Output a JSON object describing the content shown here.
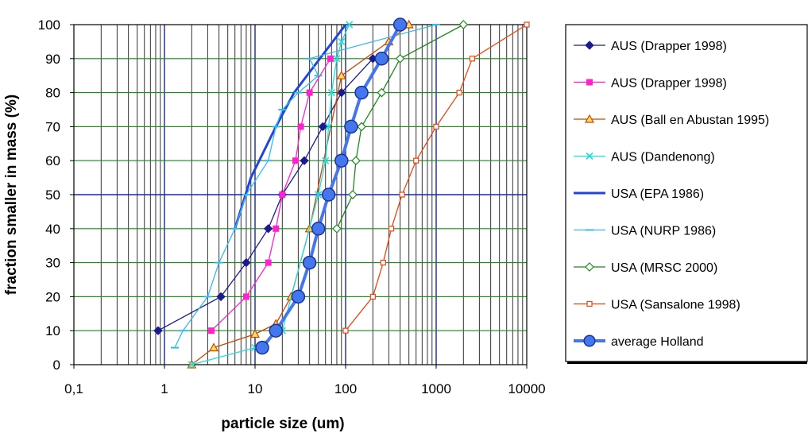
{
  "chart_data": {
    "type": "line",
    "xlabel": "particle size (um)",
    "ylabel": "fraction smaller in mass (%)",
    "xscale": "log",
    "xlim": [
      0.1,
      10000
    ],
    "ylim": [
      0,
      100
    ],
    "grid": true,
    "legend_position": "right",
    "x_ticks": [
      "0,1",
      "1",
      "10",
      "100",
      "1000",
      "10000"
    ],
    "y_ticks": [
      "0",
      "10",
      "20",
      "30",
      "40",
      "50",
      "60",
      "70",
      "80",
      "90",
      "100"
    ],
    "series": [
      {
        "name": "AUS (Drapper 1998)",
        "color": "#1b1b8f",
        "marker": "diamond",
        "width": 1.3,
        "x": [
          0.85,
          4.2,
          8,
          14,
          20,
          35,
          56,
          90,
          200
        ],
        "y": [
          10,
          20,
          30,
          40,
          50,
          60,
          70,
          80,
          90
        ]
      },
      {
        "name": "AUS (Drapper 1998)",
        "color": "#ff22cc",
        "marker": "square",
        "width": 1.3,
        "x": [
          3.3,
          8,
          14,
          17,
          20,
          28,
          32,
          40,
          68
        ],
        "y": [
          10,
          20,
          30,
          40,
          50,
          60,
          70,
          80,
          90
        ]
      },
      {
        "name": "AUS (Ball en Abustan 1995)",
        "color": "#cc4400",
        "marker": "triangle",
        "width": 1.3,
        "x": [
          2,
          3.5,
          10,
          17,
          25,
          40,
          90,
          300,
          500
        ],
        "y": [
          0,
          5,
          9,
          12,
          20,
          40,
          85,
          95,
          100
        ]
      },
      {
        "name": "AUS (Dandenong)",
        "color": "#22dddd",
        "marker": "x",
        "width": 1.3,
        "x": [
          2,
          10,
          20,
          50,
          60,
          65,
          70,
          80,
          90,
          110
        ],
        "y": [
          0,
          5,
          10,
          50,
          60,
          70,
          80,
          90,
          95,
          100
        ]
      },
      {
        "name": "USA (EPA 1986)",
        "color": "#2244dd",
        "marker": "none",
        "width": 3,
        "x": [
          6,
          9,
          17,
          27,
          100
        ],
        "y": [
          40,
          55,
          70,
          80,
          100
        ]
      },
      {
        "name": "USA (NURP 1986)",
        "color": "#33bbee",
        "marker": "dash",
        "width": 1.3,
        "x": [
          1.3,
          1.6,
          3,
          4,
          6,
          8,
          14,
          17,
          20,
          30,
          50,
          40,
          1000
        ],
        "y": [
          5,
          10,
          20,
          30,
          40,
          50,
          60,
          70,
          75,
          80,
          85,
          90,
          100
        ]
      },
      {
        "name": "USA (MRSC 2000)",
        "color": "#1a8a1a",
        "marker": "diamond-open",
        "width": 1.3,
        "x": [
          80,
          120,
          130,
          150,
          250,
          400,
          2000
        ],
        "y": [
          40,
          50,
          60,
          70,
          80,
          90,
          100
        ]
      },
      {
        "name": "USA (Sansalone 1998)",
        "color": "#ee4411",
        "marker": "square-open",
        "width": 1.3,
        "x": [
          100,
          200,
          260,
          320,
          420,
          600,
          1000,
          1800,
          2500,
          10000
        ],
        "y": [
          10,
          20,
          30,
          40,
          50,
          60,
          70,
          80,
          90,
          100
        ]
      },
      {
        "name": "average Holland",
        "color": "#4477ee",
        "marker": "circle",
        "width": 4,
        "x": [
          12,
          17,
          30,
          40,
          50,
          65,
          90,
          115,
          150,
          250,
          400
        ],
        "y": [
          5,
          10,
          20,
          30,
          40,
          50,
          60,
          70,
          80,
          90,
          100
        ]
      }
    ]
  }
}
